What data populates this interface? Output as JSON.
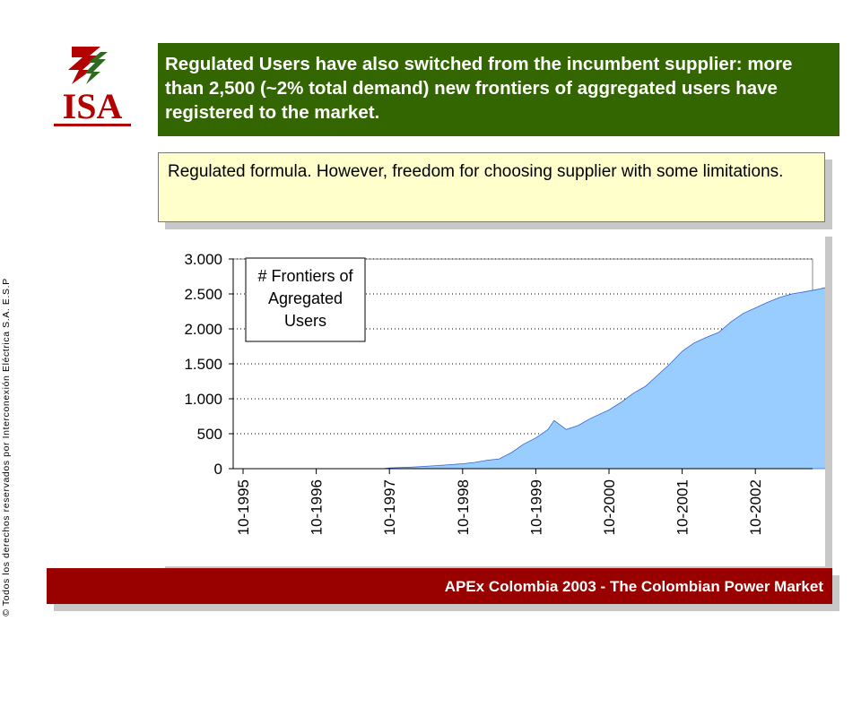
{
  "copyright": "© Todos los derechos reservados por Interconexión Eléctrica S.A. E.S.P",
  "logo": {
    "text": "ISA",
    "colors": {
      "red": "#b30000",
      "green": "#2e6b1f"
    }
  },
  "header": {
    "text": "Regulated Users have also switched from the incumbent supplier:  more than 2,500 (~2% total demand) new frontiers of aggregated users have registered to the market.",
    "background": "#336600"
  },
  "note": {
    "text": "Regulated formula. However, freedom for choosing supplier with some limitations.",
    "background": "#ffffcc"
  },
  "footer": {
    "text": "APEx Colombia 2003 - The Colombian Power Market",
    "background": "#990000"
  },
  "chart_data": {
    "type": "area",
    "legend_box": [
      "# Frontiers of",
      "Agregated",
      "Users"
    ],
    "y_tick_labels": [
      "0",
      "500",
      "1.000",
      "1.500",
      "2.000",
      "2.500",
      "3.000"
    ],
    "y_ticks": [
      0,
      500,
      1000,
      1500,
      2000,
      2500,
      3000
    ],
    "ylim": [
      0,
      3000
    ],
    "x_tick_labels": [
      "10-1995",
      "10-1996",
      "10-1997",
      "10-1998",
      "10-1999",
      "10-2000",
      "10-2001",
      "10-2002"
    ],
    "x_tick_index": [
      0,
      12,
      24,
      36,
      48,
      60,
      72,
      84
    ],
    "x_start": "10-1995",
    "x_end_index": 97,
    "grid": "horizontal dotted",
    "fill_color": "#99ccff",
    "series": [
      {
        "points": [
          [
            0,
            0
          ],
          [
            12,
            0
          ],
          [
            23,
            0
          ],
          [
            24,
            10
          ],
          [
            28,
            25
          ],
          [
            32,
            45
          ],
          [
            36,
            70
          ],
          [
            38,
            90
          ],
          [
            40,
            120
          ],
          [
            42,
            140
          ],
          [
            44,
            230
          ],
          [
            46,
            350
          ],
          [
            48,
            440
          ],
          [
            50,
            560
          ],
          [
            51,
            690
          ],
          [
            53,
            560
          ],
          [
            55,
            620
          ],
          [
            57,
            720
          ],
          [
            60,
            840
          ],
          [
            62,
            950
          ],
          [
            64,
            1080
          ],
          [
            66,
            1180
          ],
          [
            68,
            1340
          ],
          [
            70,
            1500
          ],
          [
            72,
            1680
          ],
          [
            74,
            1800
          ],
          [
            76,
            1880
          ],
          [
            78,
            1950
          ],
          [
            80,
            2100
          ],
          [
            82,
            2220
          ],
          [
            84,
            2300
          ],
          [
            86,
            2380
          ],
          [
            88,
            2450
          ],
          [
            90,
            2500
          ],
          [
            92,
            2530
          ],
          [
            94,
            2560
          ],
          [
            96,
            2600
          ],
          [
            97,
            2620
          ]
        ]
      }
    ]
  }
}
